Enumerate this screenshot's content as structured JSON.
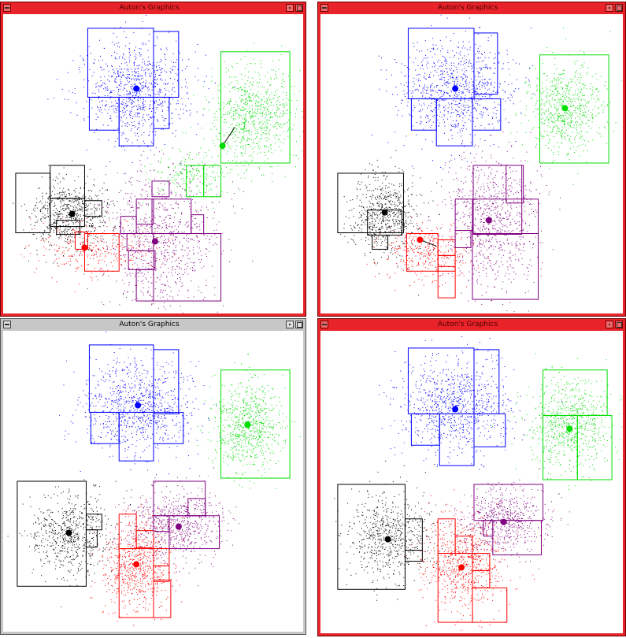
{
  "windows": [
    {
      "title": "Auton's Graphics",
      "state": "active"
    },
    {
      "title": "Auton's Graphics",
      "state": "active"
    },
    {
      "title": "Auton's Graphics",
      "state": "inactive"
    },
    {
      "title": "Auton's Graphics",
      "state": "active"
    }
  ],
  "colors": {
    "blue": "#0000ff",
    "green": "#00dd00",
    "black": "#000000",
    "red": "#ff0000",
    "purple": "#800080",
    "window_active": "#e8232a",
    "window_inactive": "#c7c7c7"
  },
  "icons": {
    "window_menu": "window-menu-icon",
    "minimize": "minimize-icon",
    "maximize": "maximize-icon"
  }
}
